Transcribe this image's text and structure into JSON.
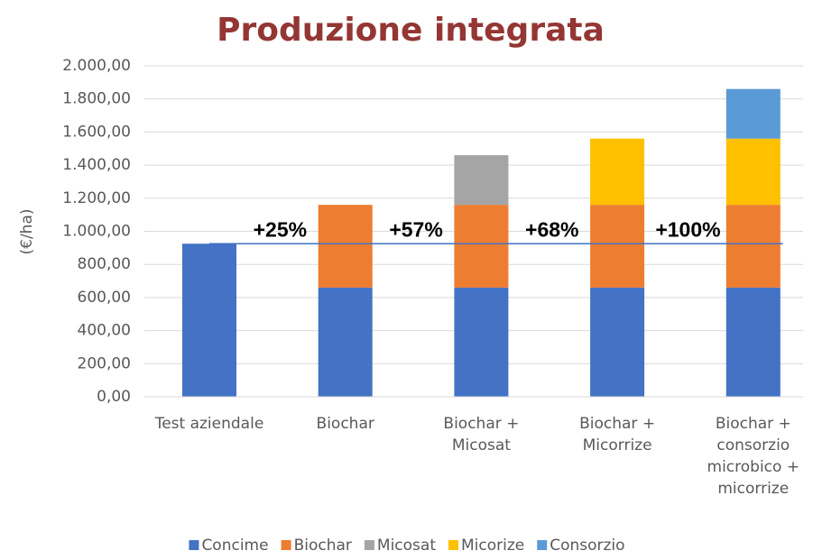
{
  "chart_data": {
    "type": "stacked_bar",
    "title": "Produzione integrata",
    "y_label": "(€/ha)",
    "categories": [
      "Test aziendale",
      "Biochar",
      "Biochar +\nMicosat",
      "Biochar +\nMicorrize",
      "Biochar +\nconsorzio\nmicrobico +\nmicorrize"
    ],
    "series": [
      {
        "name": "Concime",
        "color": "#4472c4",
        "values": [
          925,
          660,
          660,
          660,
          660
        ]
      },
      {
        "name": "Biochar",
        "color": "#ed7d31",
        "values": [
          null,
          500,
          500,
          500,
          500
        ]
      },
      {
        "name": "Micosat",
        "color": "#a5a5a5",
        "values": [
          null,
          null,
          300,
          null,
          null
        ]
      },
      {
        "name": "Micorize",
        "color": "#ffc000",
        "values": [
          null,
          null,
          null,
          400,
          400
        ]
      },
      {
        "name": "Consorzio",
        "color": "#5b9bd5",
        "values": [
          null,
          null,
          null,
          null,
          300
        ]
      }
    ],
    "reference_line": 925,
    "annotations": [
      "+25%",
      "+57%",
      "+68%",
      "+100%"
    ],
    "ylim": [
      0,
      2000
    ],
    "yticks": [
      {
        "value": 0,
        "label": "0,00"
      },
      {
        "value": 200,
        "label": "200,00"
      },
      {
        "value": 400,
        "label": "400,00"
      },
      {
        "value": 600,
        "label": "600,00"
      },
      {
        "value": 800,
        "label": "800,00"
      },
      {
        "value": 1000,
        "label": "1.000,00"
      },
      {
        "value": 1200,
        "label": "1.200,00"
      },
      {
        "value": 1400,
        "label": "1.400,00"
      },
      {
        "value": 1600,
        "label": "1.600,00"
      },
      {
        "value": 1800,
        "label": "1.800,00"
      },
      {
        "value": 2000,
        "label": "2.000,00"
      }
    ],
    "grid": true,
    "legend": "bottom"
  }
}
